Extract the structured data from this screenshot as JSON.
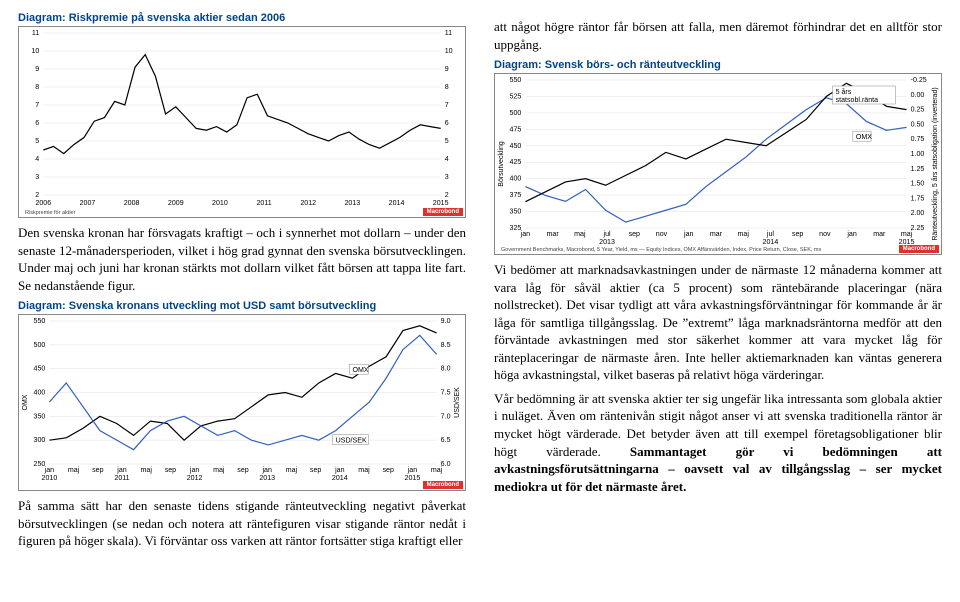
{
  "left": {
    "chart1": {
      "title": "Diagram: Riskpremie på svenska aktier sedan 2006",
      "type": "line",
      "ylim": [
        2,
        11
      ],
      "yticks": [
        2,
        3,
        4,
        5,
        6,
        7,
        8,
        9,
        10,
        11
      ],
      "xlabels": [
        "2006",
        "2007",
        "2008",
        "2009",
        "2010",
        "2011",
        "2012",
        "2013",
        "2014",
        "2015"
      ],
      "series_color": "#000000",
      "grid_color": "#e0e0e0",
      "background_color": "#ffffff",
      "legend": "Riskpremie för aktier",
      "source": "Macrobond",
      "values": [
        4.5,
        4.7,
        4.3,
        4.8,
        5.2,
        6.1,
        6.3,
        7.2,
        7.0,
        9.1,
        9.8,
        8.6,
        6.5,
        6.9,
        6.3,
        5.7,
        5.6,
        5.8,
        5.5,
        5.9,
        7.4,
        7.6,
        6.4,
        6.2,
        6.0,
        5.7,
        5.4,
        5.2,
        5.0,
        5.3,
        5.5,
        5.1,
        4.8,
        4.6,
        4.9,
        5.2,
        5.6,
        5.9,
        5.8,
        5.7
      ]
    },
    "para1": "Den svenska kronan har försvagats kraftigt – och i synnerhet mot dollarn – under den senaste 12-månadersperioden, vilket i hög grad gynnat den svenska börsutvecklingen. Under maj och juni har kronan stärkts mot dollarn vilket fått börsen att tappa lite fart. Se nedanstående figur.",
    "chart2": {
      "title": "Diagram: Svenska kronans utveckling mot USD samt börsutveckling",
      "type": "line",
      "yleft_label": "OMX",
      "yright_label": "USD/SEK",
      "yleft_lim": [
        250,
        550
      ],
      "yleft_ticks": [
        250,
        300,
        350,
        400,
        450,
        500,
        550
      ],
      "yright_lim": [
        6.0,
        9.0
      ],
      "yright_ticks": [
        6.0,
        6.5,
        7.0,
        7.5,
        8.0,
        8.5,
        9.0
      ],
      "xlabels": [
        "jan",
        "maj",
        "sep",
        "jan",
        "maj",
        "sep",
        "jan",
        "maj",
        "sep",
        "jan",
        "maj",
        "sep",
        "jan",
        "maj",
        "sep",
        "jan",
        "maj"
      ],
      "xyears": [
        "2010",
        "",
        "",
        "2011",
        "",
        "",
        "2012",
        "",
        "",
        "2013",
        "",
        "",
        "2014",
        "",
        "",
        "2015",
        ""
      ],
      "grid_color": "#e0e0e0",
      "background_color": "#ffffff",
      "source": "Macrobond",
      "series": [
        {
          "name": "OMX",
          "color": "#000000",
          "ann": "OMX",
          "values": [
            300,
            305,
            325,
            350,
            335,
            310,
            340,
            335,
            300,
            330,
            340,
            345,
            370,
            395,
            400,
            390,
            420,
            440,
            430,
            455,
            475,
            530,
            540,
            525
          ]
        },
        {
          "name": "USD/SEK",
          "color": "#3060c0",
          "ann": "USD/SEK",
          "values": [
            7.3,
            7.7,
            7.2,
            6.7,
            6.5,
            6.3,
            6.7,
            6.9,
            7.0,
            6.8,
            6.6,
            6.7,
            6.5,
            6.4,
            6.5,
            6.6,
            6.5,
            6.7,
            7.0,
            7.3,
            7.8,
            8.4,
            8.7,
            8.3
          ]
        }
      ]
    },
    "para2": "På samma sätt har den senaste tidens stigande ränteutveckling negativt påverkat börsutvecklingen (se nedan och notera att räntefiguren visar stigande räntor nedåt i figuren på höger skala). Vi förväntar oss varken att räntor fortsätter stiga kraftigt eller"
  },
  "right": {
    "para1": "att något högre räntor får börsen att falla, men däremot förhindrar det en alltför stor uppgång.",
    "chart3": {
      "title": "Diagram: Svensk börs- och ränteutveckling",
      "type": "line",
      "yleft_label": "Börsutveckling",
      "yright_label": "Ränteutveckling, 5 års statsobligation (inverterad)",
      "yleft_lim": [
        325,
        550
      ],
      "yleft_ticks": [
        325,
        350,
        375,
        400,
        425,
        450,
        475,
        500,
        525,
        550
      ],
      "yright_lim": [
        -0.25,
        2.25
      ],
      "yright_ticks": [
        -0.25,
        0.0,
        0.25,
        0.5,
        0.75,
        1.0,
        1.25,
        1.5,
        1.75,
        2.0,
        2.25
      ],
      "yright_inverted": true,
      "xlabels": [
        "jan",
        "mar",
        "maj",
        "jul",
        "sep",
        "nov",
        "jan",
        "mar",
        "maj",
        "jul",
        "sep",
        "nov",
        "jan",
        "mar",
        "maj"
      ],
      "xyears": [
        "",
        "",
        "",
        "2013",
        "",
        "",
        "",
        "",
        "",
        "2014",
        "",
        "",
        "",
        "",
        "2015"
      ],
      "grid_color": "#e0e0e0",
      "grid_color_center": "#808080",
      "background_color": "#ffffff",
      "source": "Macrobond",
      "legend": "Government Benchmarks, Macrobond, 5 Year, Yield, ms — Equity Indices, OMX Affärsvärlden, Index, Price Return, Close, SEK, ms",
      "series": [
        {
          "name": "5 års statsobl.ränta",
          "color": "#3060c0",
          "ann": "5 års\nstatsobl.ränta",
          "axis": "right",
          "values": [
            1.55,
            1.7,
            1.8,
            1.6,
            1.95,
            2.15,
            2.05,
            1.95,
            1.85,
            1.55,
            1.3,
            1.05,
            0.75,
            0.5,
            0.25,
            0.05,
            0.15,
            0.45,
            0.6,
            0.55
          ]
        },
        {
          "name": "OMX",
          "color": "#000000",
          "ann": "OMX",
          "axis": "left",
          "values": [
            365,
            380,
            395,
            400,
            390,
            405,
            420,
            440,
            430,
            445,
            460,
            455,
            450,
            470,
            490,
            525,
            545,
            530,
            510,
            505
          ]
        }
      ]
    },
    "para2": "Vi bedömer att marknadsavkastningen under de närmaste 12 månaderna kommer att vara låg för såväl aktier (ca 5 procent) som räntebärande placeringar (nära nollstrecket). Det visar tydligt att våra avkastningsförväntningar för kommande år är låga för samtliga tillgångsslag. De ”extremt” låga marknadsräntorna medför att den förväntade avkastningen med stor säkerhet kommer att vara mycket låg för ränteplaceringar de närmaste åren. Inte heller aktiemarknaden kan väntas generera höga avkastningstal, vilket baseras på relativt höga värderingar.",
    "para3a": "Vår bedömning är att svenska aktier ter sig ungefär lika intressanta som globala aktier i nuläget. Även om räntenivån stigit något anser vi att svenska traditionella räntor är mycket högt värderade. Det betyder även att till exempel företagsobligationer blir högt värderade. ",
    "para3b": "Sammantaget gör vi bedömningen att avkastningsförutsättningarna – oavsett val av tillgångsslag – ser mycket mediokra ut för det närmaste året."
  }
}
